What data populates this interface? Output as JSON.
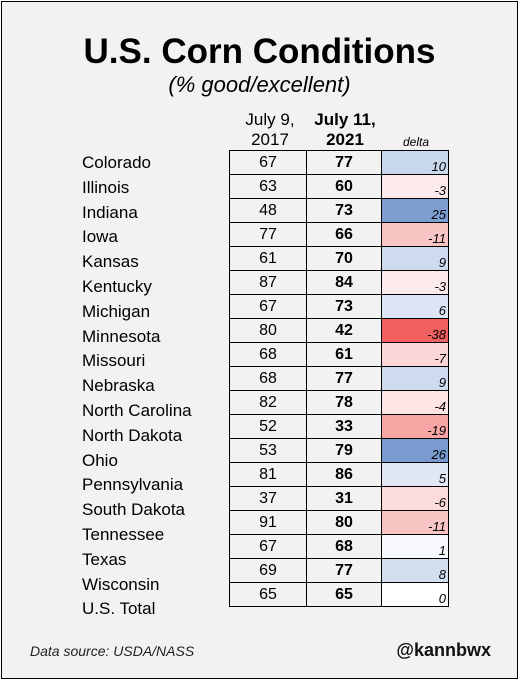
{
  "chart_data": {
    "type": "table",
    "title": "U.S. Corn Conditions",
    "subtitle": "(% good/excellent)",
    "columns": [
      {
        "line1": "July 9,",
        "line2": "2017"
      },
      {
        "line1": "July 11,",
        "line2": "2021"
      },
      {
        "line1": "delta",
        "line2": ""
      }
    ],
    "rows": [
      {
        "state": "Colorado",
        "y2017": 67,
        "y2021": 77,
        "delta": 10
      },
      {
        "state": "Illinois",
        "y2017": 63,
        "y2021": 60,
        "delta": -3
      },
      {
        "state": "Indiana",
        "y2017": 48,
        "y2021": 73,
        "delta": 25
      },
      {
        "state": "Iowa",
        "y2017": 77,
        "y2021": 66,
        "delta": -11
      },
      {
        "state": "Kansas",
        "y2017": 61,
        "y2021": 70,
        "delta": 9
      },
      {
        "state": "Kentucky",
        "y2017": 87,
        "y2021": 84,
        "delta": -3
      },
      {
        "state": "Michigan",
        "y2017": 67,
        "y2021": 73,
        "delta": 6
      },
      {
        "state": "Minnesota",
        "y2017": 80,
        "y2021": 42,
        "delta": -38
      },
      {
        "state": "Missouri",
        "y2017": 68,
        "y2021": 61,
        "delta": -7
      },
      {
        "state": "Nebraska",
        "y2017": 68,
        "y2021": 77,
        "delta": 9
      },
      {
        "state": "North Carolina",
        "y2017": 82,
        "y2021": 78,
        "delta": -4
      },
      {
        "state": "North Dakota",
        "y2017": 52,
        "y2021": 33,
        "delta": -19
      },
      {
        "state": "Ohio",
        "y2017": 53,
        "y2021": 79,
        "delta": 26
      },
      {
        "state": "Pennsylvania",
        "y2017": 81,
        "y2021": 86,
        "delta": 5
      },
      {
        "state": "South Dakota",
        "y2017": 37,
        "y2021": 31,
        "delta": -6
      },
      {
        "state": "Tennessee",
        "y2017": 91,
        "y2021": 80,
        "delta": -11
      },
      {
        "state": "Texas",
        "y2017": 67,
        "y2021": 68,
        "delta": 1
      },
      {
        "state": "Wisconsin",
        "y2017": 69,
        "y2021": 77,
        "delta": 8
      },
      {
        "state": "U.S. Total",
        "y2017": 65,
        "y2021": 65,
        "delta": 0
      }
    ],
    "colors": {
      "positive": "#4a78c0",
      "negative": "#f06060",
      "neutral": "#ffffff"
    }
  },
  "footer": {
    "source": "Data source: USDA/NASS",
    "handle": "@kannbwx"
  }
}
